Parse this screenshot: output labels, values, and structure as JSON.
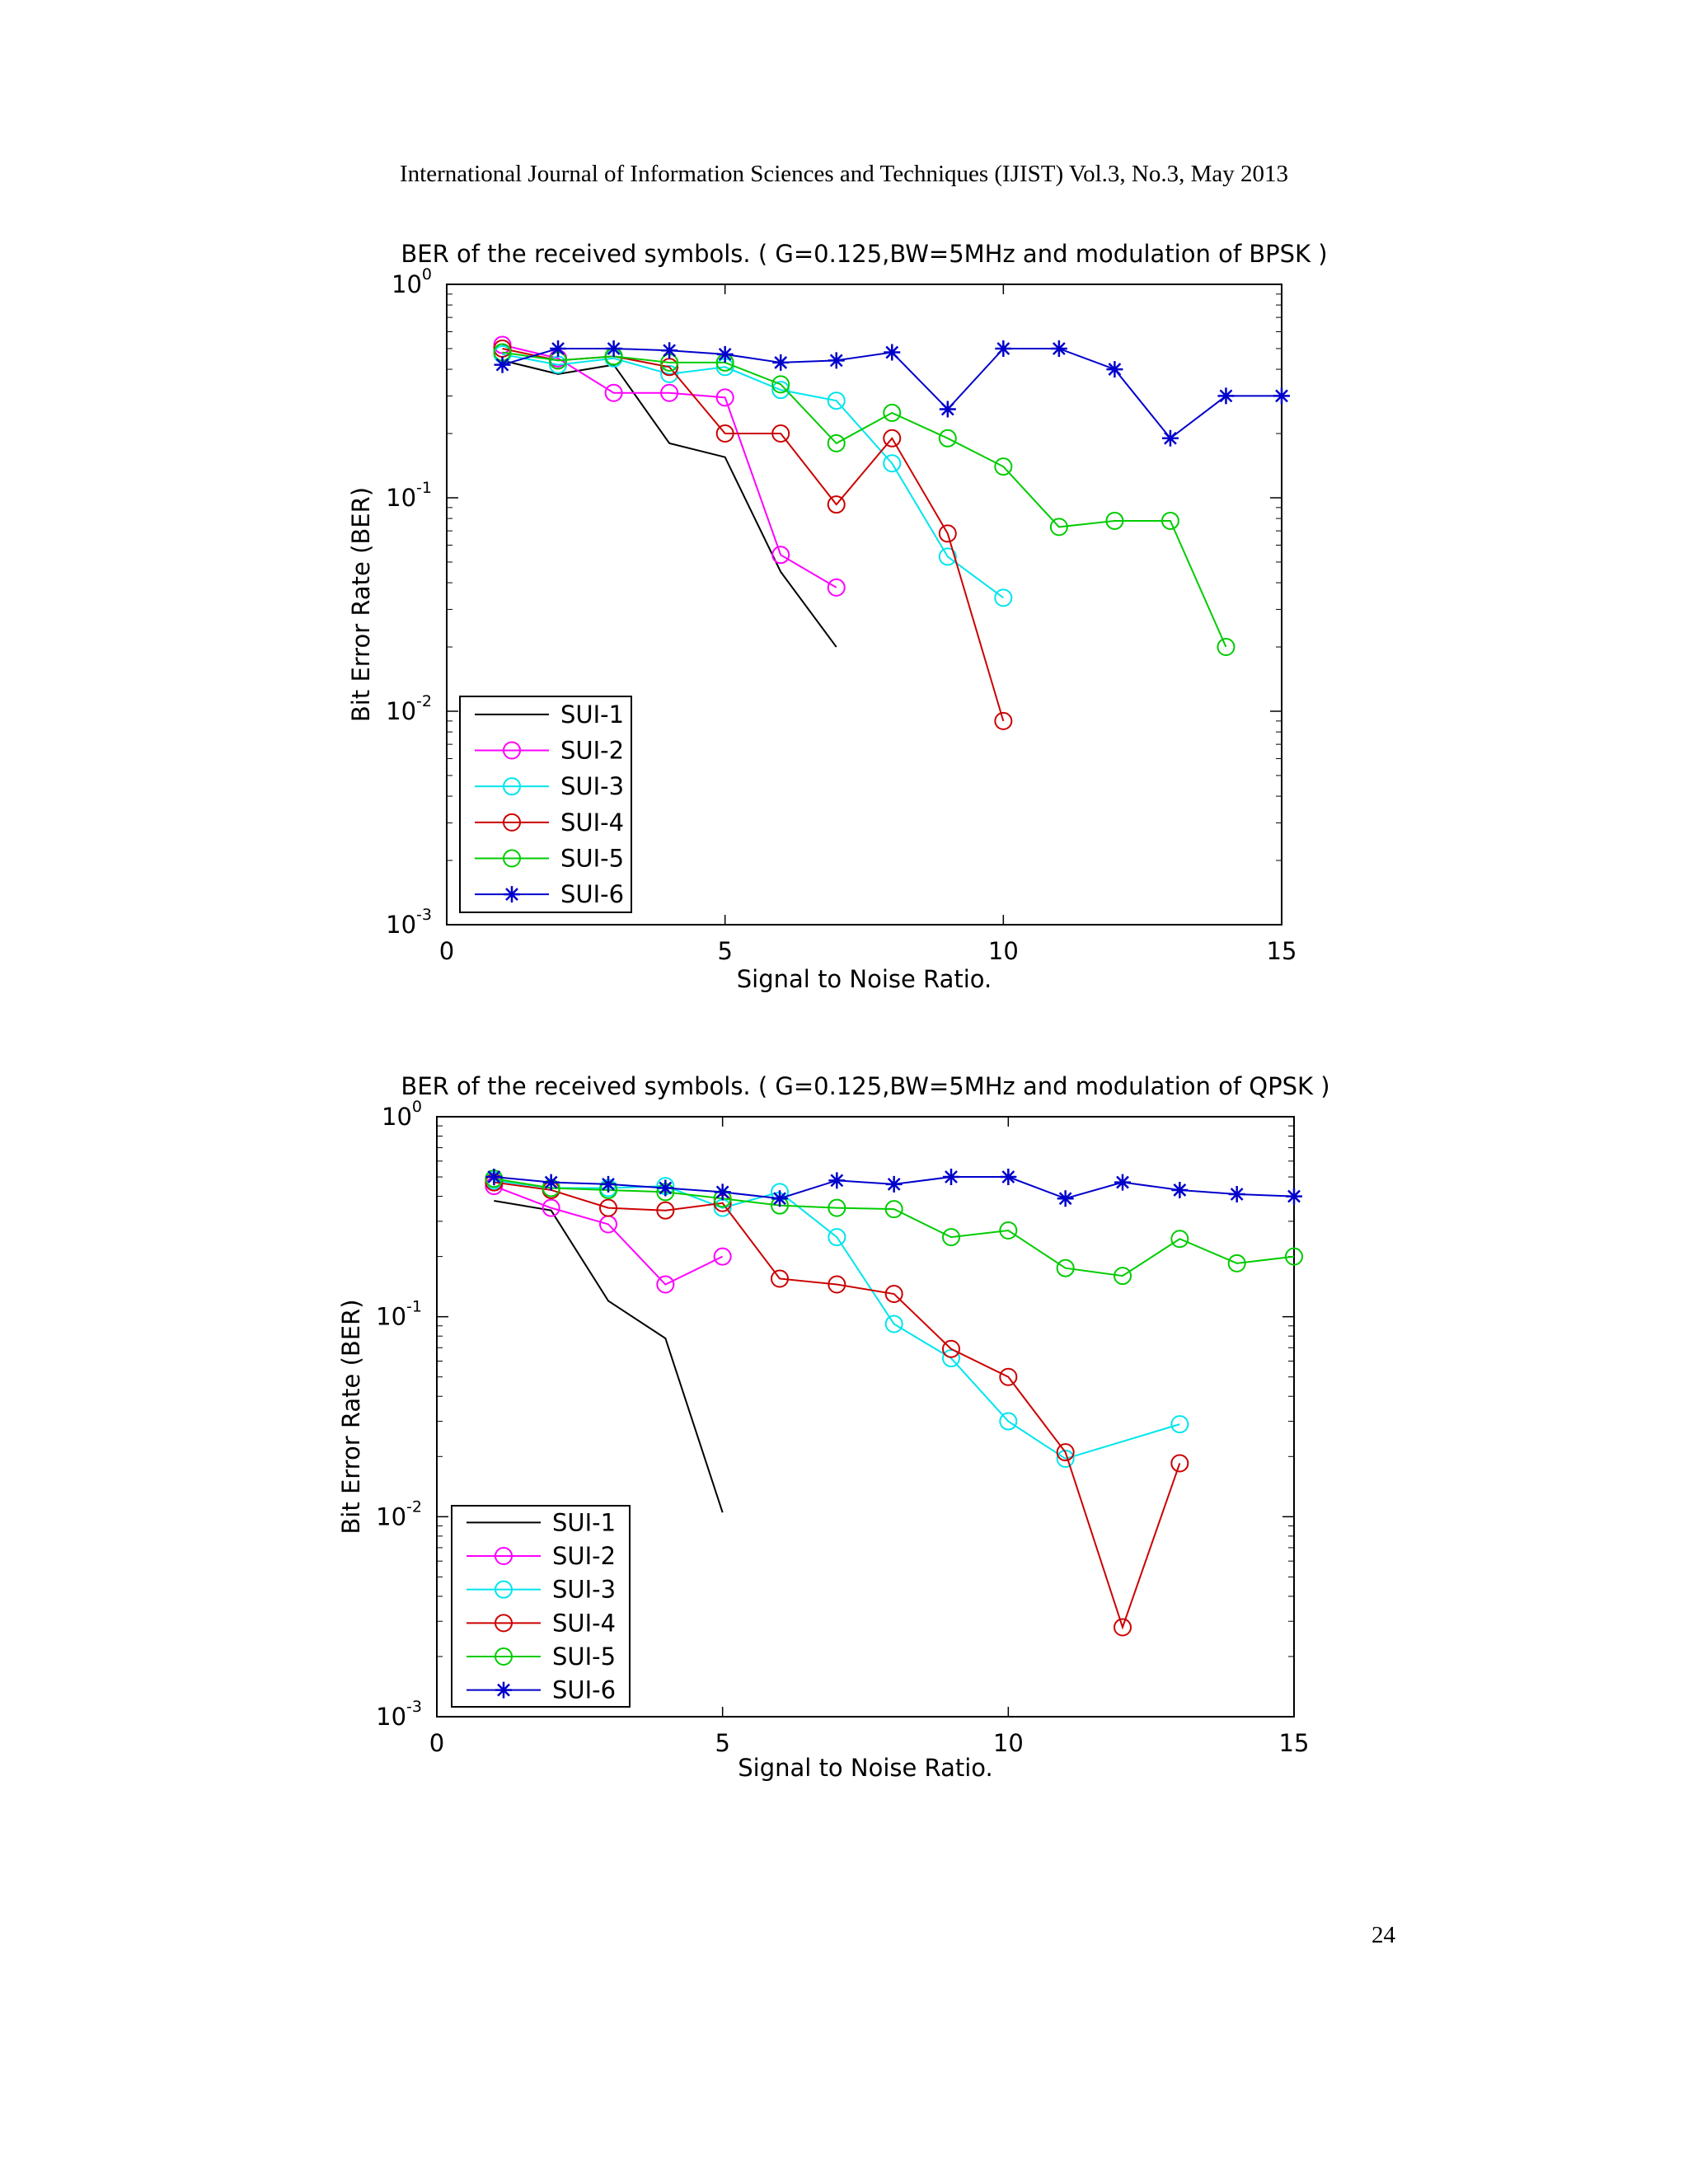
{
  "page": {
    "header": "International Journal of Information Sciences and Techniques (IJIST) Vol.3, No.3, May 2013",
    "page_number": "24"
  },
  "chart_data": [
    {
      "type": "line",
      "title": "BER of the received symbols. ( G=0.125,BW=5MHz and modulation of BPSK )",
      "xlabel": "Signal to Noise Ratio.",
      "ylabel": "Bit Error Rate (BER)",
      "xlim": [
        0,
        15
      ],
      "ylim": [
        0.001,
        1
      ],
      "yscale": "log",
      "xticks": [
        "0",
        "5",
        "10",
        "15"
      ],
      "yticks": [
        {
          "base": "10",
          "exp": "0"
        },
        {
          "base": "10",
          "exp": "-1"
        },
        {
          "base": "10",
          "exp": "-2"
        },
        {
          "base": "10",
          "exp": "-3"
        }
      ],
      "legend_position": "bottom-left",
      "series": [
        {
          "name": "SUI-1",
          "color": "#000000",
          "marker": "none",
          "x": [
            1,
            2,
            3,
            4,
            5,
            6,
            7
          ],
          "y": [
            0.44,
            0.38,
            0.42,
            0.18,
            0.155,
            0.045,
            0.02
          ]
        },
        {
          "name": "SUI-2",
          "color": "#ff00ff",
          "marker": "circle",
          "x": [
            1,
            2,
            3,
            4,
            5,
            6,
            7
          ],
          "y": [
            0.52,
            0.45,
            0.31,
            0.31,
            0.295,
            0.054,
            0.038
          ]
        },
        {
          "name": "SUI-3",
          "color": "#00e5ee",
          "marker": "circle",
          "x": [
            1,
            2,
            3,
            4,
            5,
            6,
            7,
            8,
            9,
            10
          ],
          "y": [
            0.47,
            0.42,
            0.45,
            0.38,
            0.41,
            0.32,
            0.285,
            0.145,
            0.053,
            0.034
          ]
        },
        {
          "name": "SUI-4",
          "color": "#cc0000",
          "marker": "circle",
          "x": [
            1,
            2,
            3,
            4,
            5,
            6,
            7,
            8,
            9,
            10
          ],
          "y": [
            0.5,
            0.44,
            0.46,
            0.41,
            0.2,
            0.2,
            0.093,
            0.19,
            0.068,
            0.009
          ]
        },
        {
          "name": "SUI-5",
          "color": "#00cc00",
          "marker": "circle",
          "x": [
            1,
            2,
            3,
            4,
            5,
            6,
            7,
            8,
            9,
            10,
            11,
            12,
            13,
            14
          ],
          "y": [
            0.48,
            0.44,
            0.46,
            0.43,
            0.43,
            0.34,
            0.18,
            0.25,
            0.19,
            0.14,
            0.073,
            0.078,
            0.078,
            0.02
          ]
        },
        {
          "name": "SUI-6",
          "color": "#0000cc",
          "marker": "star",
          "x": [
            1,
            2,
            3,
            4,
            5,
            6,
            7,
            8,
            9,
            10,
            11,
            12,
            13,
            14,
            15
          ],
          "y": [
            0.42,
            0.5,
            0.5,
            0.49,
            0.47,
            0.43,
            0.44,
            0.48,
            0.26,
            0.5,
            0.5,
            0.4,
            0.19,
            0.3,
            0.3
          ]
        }
      ]
    },
    {
      "type": "line",
      "title": "BER of the received symbols. ( G=0.125,BW=5MHz and modulation of QPSK )",
      "xlabel": "Signal to Noise Ratio.",
      "ylabel": "Bit Error Rate (BER)",
      "xlim": [
        0,
        15
      ],
      "ylim": [
        0.001,
        1
      ],
      "yscale": "log",
      "xticks": [
        "0",
        "5",
        "10",
        "15"
      ],
      "yticks": [
        {
          "base": "10",
          "exp": "0"
        },
        {
          "base": "10",
          "exp": "-1"
        },
        {
          "base": "10",
          "exp": "-2"
        },
        {
          "base": "10",
          "exp": "-3"
        }
      ],
      "legend_position": "bottom-left",
      "series": [
        {
          "name": "SUI-1",
          "color": "#000000",
          "marker": "none",
          "x": [
            1,
            2,
            3,
            4,
            5
          ],
          "y": [
            0.38,
            0.34,
            0.12,
            0.078,
            0.0105
          ]
        },
        {
          "name": "SUI-2",
          "color": "#ff00ff",
          "marker": "circle",
          "x": [
            1,
            2,
            3,
            4,
            5
          ],
          "y": [
            0.45,
            0.35,
            0.29,
            0.145,
            0.2
          ]
        },
        {
          "name": "SUI-3",
          "color": "#00e5ee",
          "marker": "circle",
          "x": [
            1,
            2,
            3,
            4,
            5,
            6,
            7,
            8,
            9,
            10,
            11,
            13
          ],
          "y": [
            0.48,
            0.44,
            0.44,
            0.45,
            0.35,
            0.42,
            0.25,
            0.092,
            0.062,
            0.03,
            0.0195,
            0.029
          ]
        },
        {
          "name": "SUI-4",
          "color": "#cc0000",
          "marker": "circle",
          "x": [
            1,
            2,
            3,
            4,
            5,
            6,
            7,
            8,
            9,
            10,
            11,
            12,
            13
          ],
          "y": [
            0.47,
            0.43,
            0.35,
            0.34,
            0.37,
            0.155,
            0.145,
            0.13,
            0.069,
            0.05,
            0.021,
            0.0028,
            0.0185
          ]
        },
        {
          "name": "SUI-5",
          "color": "#00cc00",
          "marker": "circle",
          "x": [
            1,
            2,
            3,
            4,
            5,
            6,
            7,
            8,
            9,
            10,
            11,
            12,
            13,
            14,
            15
          ],
          "y": [
            0.49,
            0.44,
            0.43,
            0.42,
            0.39,
            0.36,
            0.35,
            0.345,
            0.25,
            0.27,
            0.175,
            0.16,
            0.245,
            0.185,
            0.2
          ]
        },
        {
          "name": "SUI-6",
          "color": "#0000cc",
          "marker": "star",
          "x": [
            1,
            2,
            3,
            4,
            5,
            6,
            7,
            8,
            9,
            10,
            11,
            12,
            13,
            14,
            15
          ],
          "y": [
            0.5,
            0.47,
            0.46,
            0.44,
            0.42,
            0.39,
            0.48,
            0.46,
            0.5,
            0.5,
            0.39,
            0.47,
            0.43,
            0.41,
            0.4
          ]
        }
      ]
    }
  ]
}
